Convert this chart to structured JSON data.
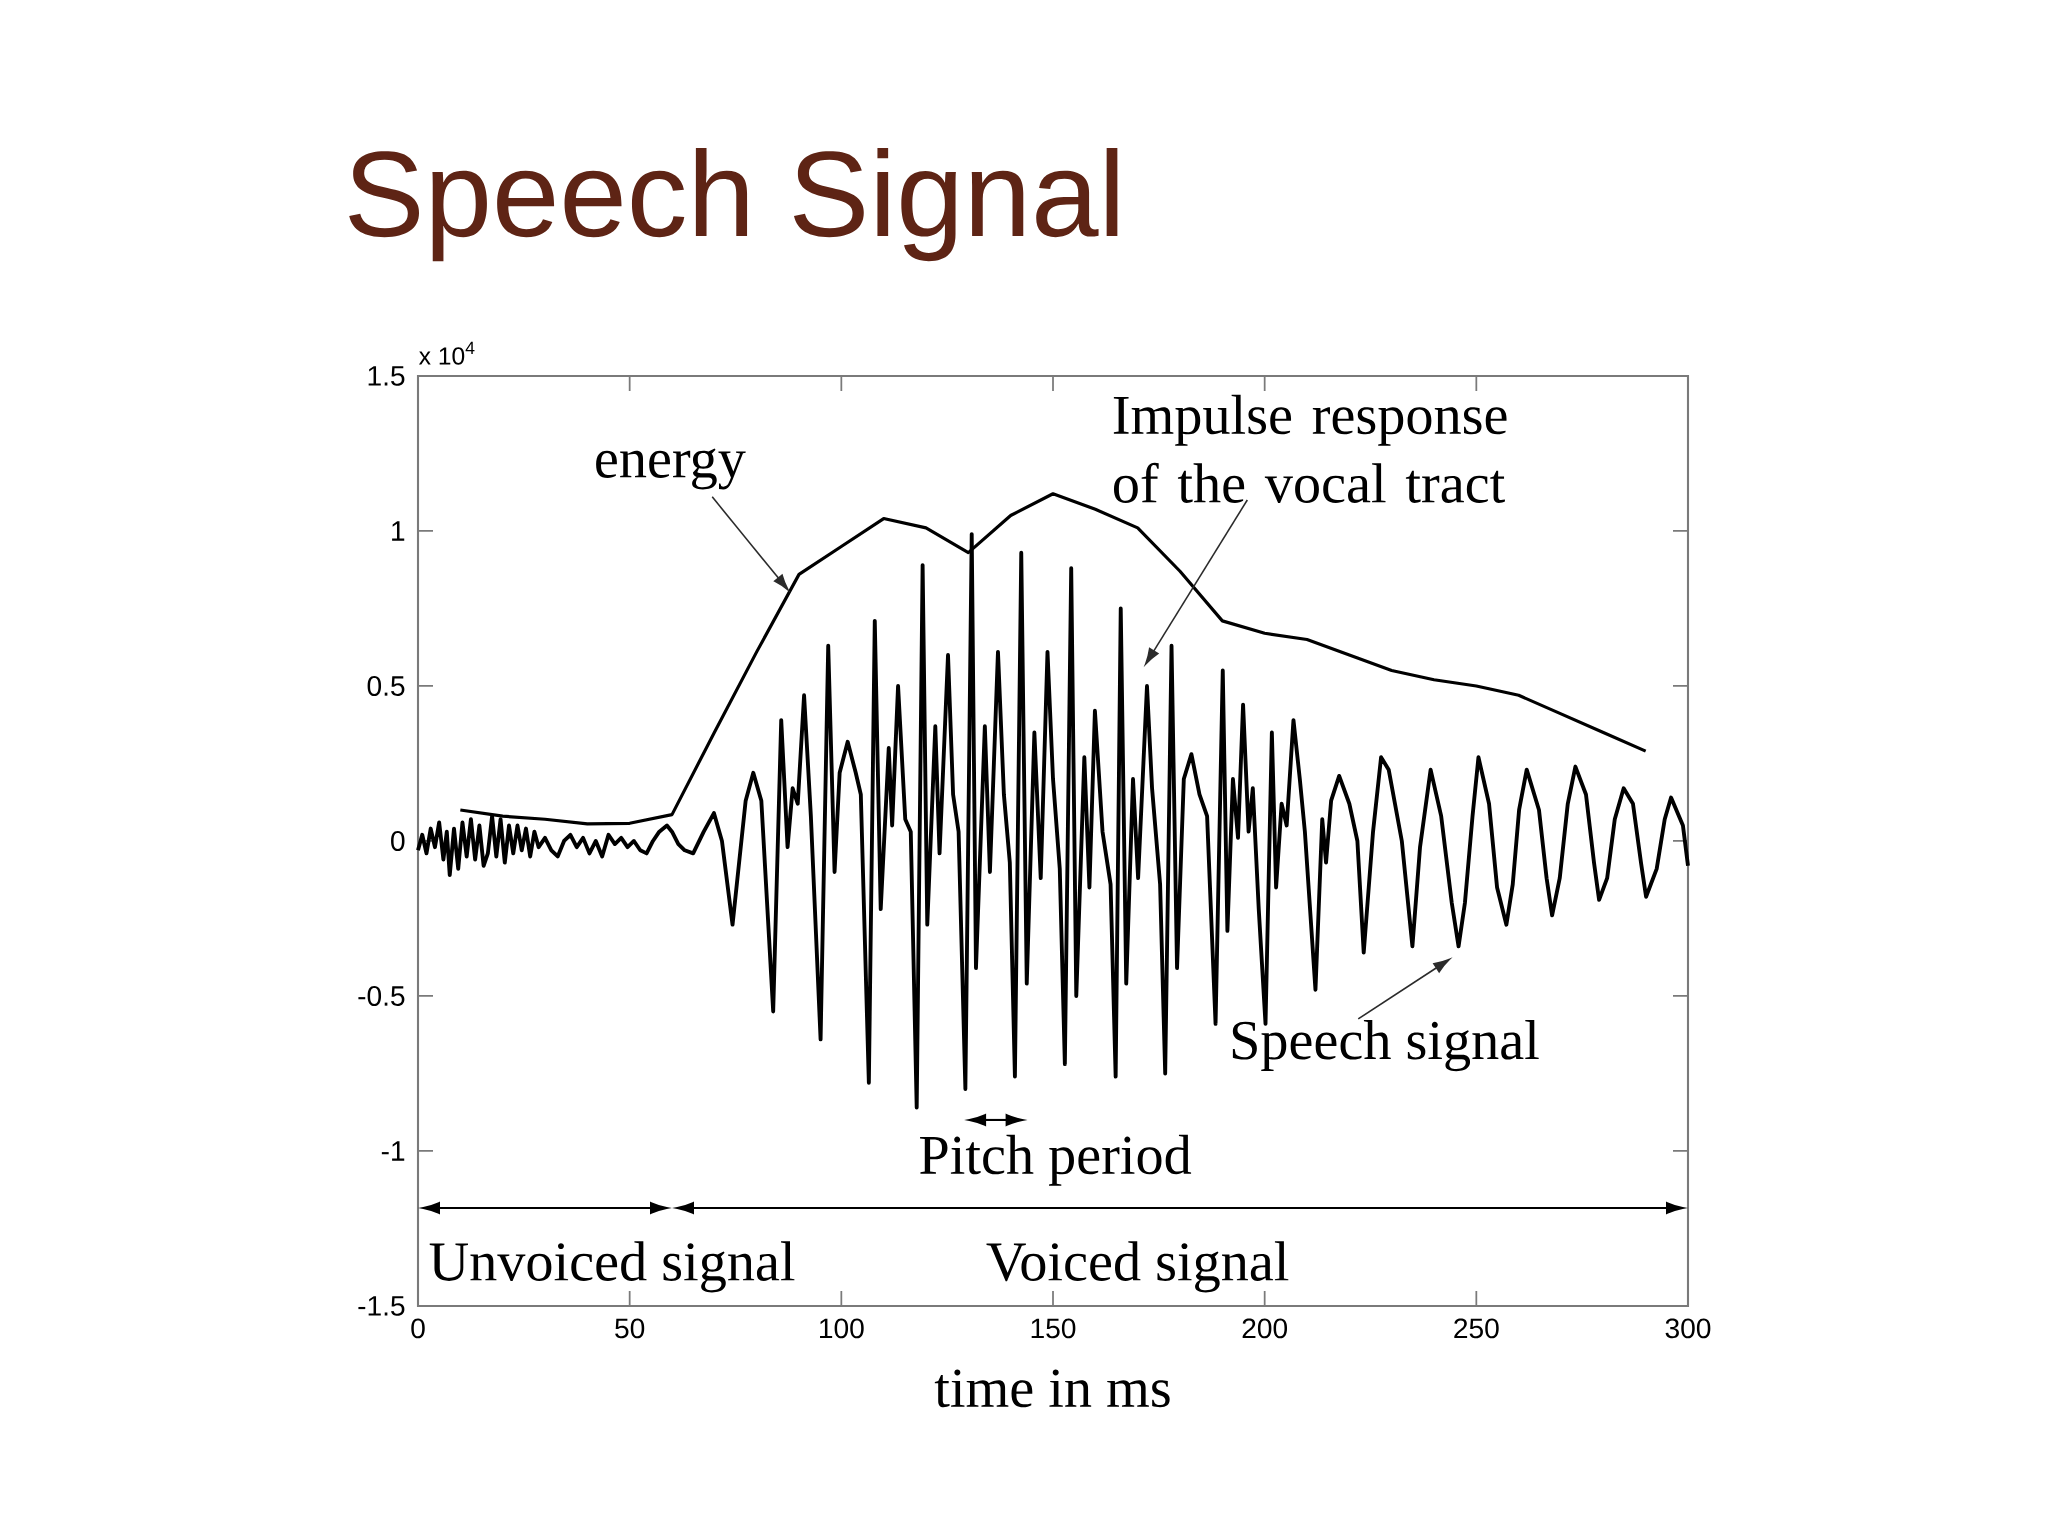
{
  "chart_data": {
    "type": "line",
    "title": "Speech Signal",
    "xlabel": "time in ms",
    "series": [
      {
        "color": "#000000",
        "x": [
          0,
          1,
          2,
          3,
          4,
          5,
          6,
          6.8,
          7.5,
          8.5,
          9.5,
          10.5,
          11.5,
          12.5,
          13.5,
          14.5,
          15.5,
          16.5,
          17.5,
          18.5,
          19.5,
          20.5,
          21.5,
          22.5,
          23.5,
          24.5,
          25.5,
          26.5,
          27.5,
          28.5,
          30,
          31.5,
          33,
          34.5,
          36,
          37.5,
          39,
          40.5,
          42,
          43.5,
          45,
          46.5,
          48,
          49.5,
          51,
          52.5,
          54,
          55.5,
          57,
          58.8,
          60,
          61.5,
          63,
          65,
          67.5,
          69.9,
          71.8,
          74.3,
          77.4,
          79.2,
          81.1,
          83.9,
          85.8,
          87.3,
          88.5,
          89.7,
          91.2,
          92.8,
          95.1,
          96.9,
          98.4,
          99.6,
          101.5,
          103.4,
          104.6,
          106.5,
          107.9,
          109.3,
          111.2,
          112,
          113.4,
          115.1,
          116.4,
          117.8,
          119.2,
          120.3,
          122.2,
          123.2,
          125.2,
          126.4,
          127.7,
          129.3,
          130.8,
          131.8,
          133.9,
          135.1,
          137,
          138.4,
          139.8,
          141,
          142.5,
          143.8,
          145.6,
          147.1,
          148.7,
          150,
          151.6,
          152.8,
          154.3,
          155.5,
          157.4,
          158.6,
          159.9,
          161.7,
          163.6,
          164.8,
          166,
          167.3,
          168.9,
          170.1,
          172.2,
          173.4,
          175.3,
          176.5,
          178,
          179.3,
          180.9,
          182.7,
          184.6,
          186.4,
          188.4,
          190.1,
          191.2,
          192.5,
          193.7,
          194.9,
          196.2,
          197.2,
          198.6,
          200.2,
          201.7,
          202.7,
          204,
          205.2,
          206.8,
          208.3,
          209.5,
          212,
          213.6,
          214.5,
          215.7,
          217.6,
          220,
          221.9,
          223.4,
          225.6,
          227.5,
          229.3,
          232.4,
          234.9,
          236.7,
          239.2,
          241.7,
          244.2,
          245.8,
          247.3,
          249.1,
          250.5,
          253,
          254.9,
          257.1,
          258.6,
          260.1,
          261.9,
          264.8,
          266.6,
          267.9,
          269.7,
          271.6,
          273.4,
          275.9,
          277.8,
          279,
          280.9,
          282.7,
          284.8,
          287,
          288.9,
          290.1,
          292.6,
          294.5,
          296,
          298.8,
          300
        ],
        "values": [
          -0.03,
          0.02,
          -0.04,
          0.04,
          -0.02,
          0.06,
          -0.06,
          0.03,
          -0.11,
          0.04,
          -0.09,
          0.06,
          -0.05,
          0.07,
          -0.06,
          0.05,
          -0.08,
          -0.04,
          0.08,
          -0.05,
          0.07,
          -0.07,
          0.05,
          -0.04,
          0.05,
          -0.03,
          0.04,
          -0.05,
          0.03,
          -0.02,
          0.01,
          -0.03,
          -0.05,
          0,
          0.02,
          -0.02,
          0.01,
          -0.04,
          0,
          -0.05,
          0.02,
          -0.01,
          0.01,
          -0.02,
          0,
          -0.03,
          -0.04,
          0,
          0.03,
          0.05,
          0.03,
          -0.01,
          -0.03,
          -0.04,
          0.03,
          0.09,
          0,
          -0.27,
          0.13,
          0.22,
          0.13,
          -0.55,
          0.39,
          -0.02,
          0.17,
          0.12,
          0.47,
          0.08,
          -0.64,
          0.63,
          -0.1,
          0.22,
          0.32,
          0.22,
          0.15,
          -0.78,
          0.71,
          -0.22,
          0.3,
          0.05,
          0.5,
          0.07,
          0.03,
          -0.86,
          0.89,
          -0.27,
          0.37,
          -0.04,
          0.6,
          0.15,
          0.03,
          -0.8,
          0.99,
          -0.41,
          0.37,
          -0.1,
          0.61,
          0.15,
          -0.07,
          -0.76,
          0.93,
          -0.46,
          0.35,
          -0.12,
          0.61,
          0.2,
          -0.09,
          -0.72,
          0.88,
          -0.5,
          0.27,
          -0.15,
          0.42,
          0.03,
          -0.14,
          -0.76,
          0.75,
          -0.46,
          0.2,
          -0.12,
          0.5,
          0.17,
          -0.14,
          -0.75,
          0.63,
          -0.41,
          0.2,
          0.28,
          0.15,
          0.08,
          -0.59,
          0.55,
          -0.29,
          0.2,
          0.01,
          0.44,
          0.03,
          0.17,
          -0.22,
          -0.59,
          0.35,
          -0.15,
          0.12,
          0.05,
          0.39,
          0.2,
          0.03,
          -0.48,
          0.07,
          -0.07,
          0.13,
          0.21,
          0.12,
          0,
          -0.36,
          0.03,
          0.27,
          0.23,
          0,
          -0.34,
          -0.02,
          0.23,
          0.08,
          -0.2,
          -0.34,
          -0.2,
          0.08,
          0.27,
          0.12,
          -0.15,
          -0.27,
          -0.14,
          0.1,
          0.23,
          0.1,
          -0.12,
          -0.24,
          -0.12,
          0.12,
          0.24,
          0.15,
          -0.07,
          -0.19,
          -0.12,
          0.07,
          0.17,
          0.12,
          -0.07,
          -0.18,
          -0.09,
          0.07,
          0.14,
          0.05,
          -0.08
        ]
      },
      {
        "color": "#000000",
        "x": [
          10,
          20,
          30,
          40,
          50,
          60,
          70,
          80,
          90,
          100,
          110,
          120,
          130,
          140,
          150,
          160,
          170,
          180,
          190,
          200,
          210,
          220,
          230,
          240,
          250,
          260,
          270,
          280,
          290
        ],
        "values": [
          0.1,
          0.08,
          0.07,
          0.055,
          0.057,
          0.085,
          0.35,
          0.61,
          0.86,
          0.95,
          1.04,
          1.01,
          0.93,
          1.05,
          1.12,
          1.07,
          1.01,
          0.87,
          0.71,
          0.67,
          0.65,
          0.6,
          0.55,
          0.52,
          0.5,
          0.47,
          0.41,
          0.35,
          0.29
        ]
      }
    ],
    "xlim": [
      0,
      300
    ],
    "ylim": [
      -1.5,
      1.5
    ],
    "xticks": [
      0,
      50,
      100,
      150,
      200,
      250,
      300
    ],
    "yticks": [
      -1.5,
      -1,
      -0.5,
      0,
      0.5,
      1,
      1.5
    ],
    "annotations": [
      "x 10$^{4}$",
      {
        "text": "energy",
        "x": 88,
        "y": 0.8
      },
      "Impulse response of the vocal tract",
      {
        "text": "Speech signal",
        "x": 245.8,
        "y": -0.34
      },
      "Pitch period",
      "Unvoiced signal",
      "Voiced signal"
    ]
  }
}
